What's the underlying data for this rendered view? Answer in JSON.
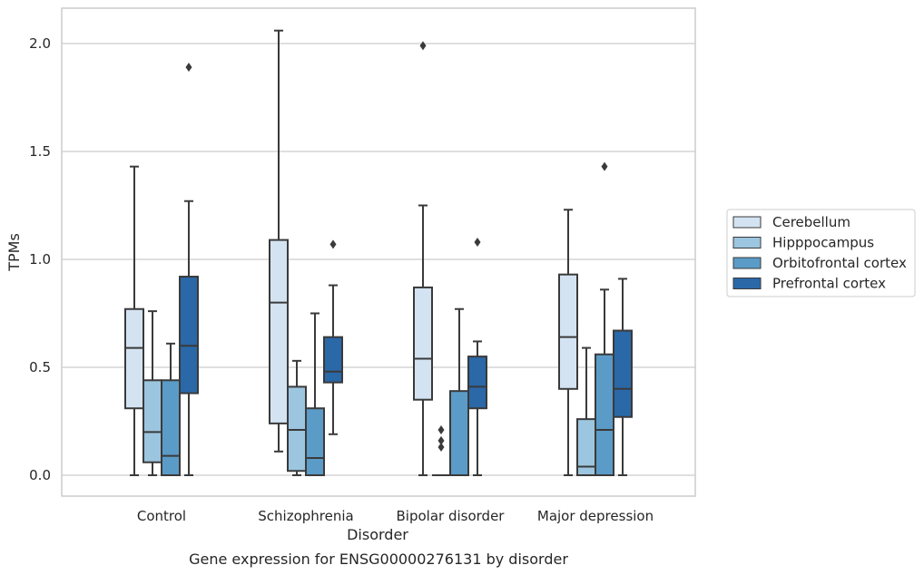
{
  "chart_data": {
    "type": "box",
    "title": "",
    "caption": "Gene expression for ENSG00000276131 by disorder",
    "xlabel": "Disorder",
    "ylabel": "TPMs",
    "ylim": [
      -0.1,
      2.17
    ],
    "yticks": [
      0.0,
      0.5,
      1.0,
      1.5,
      2.0
    ],
    "ytick_labels": [
      "0.0",
      "0.5",
      "1.0",
      "1.5",
      "2.0"
    ],
    "grid": "horizontal",
    "legend_position": "right",
    "categories": [
      "Control",
      "Schizophrenia",
      "Bipolar disorder",
      "Major depression"
    ],
    "series": [
      {
        "name": "Cerebellum",
        "color": "#d4e3f2",
        "boxes": [
          {
            "whislo": 0.0,
            "q1": 0.31,
            "med": 0.59,
            "q3": 0.77,
            "whishi": 1.43,
            "fliers": []
          },
          {
            "whislo": 0.11,
            "q1": 0.24,
            "med": 0.8,
            "q3": 1.09,
            "whishi": 2.06,
            "fliers": []
          },
          {
            "whislo": 0.0,
            "q1": 0.35,
            "med": 0.54,
            "q3": 0.87,
            "whishi": 1.25,
            "fliers": [
              1.99
            ]
          },
          {
            "whislo": 0.0,
            "q1": 0.4,
            "med": 0.64,
            "q3": 0.93,
            "whishi": 1.23,
            "fliers": []
          }
        ]
      },
      {
        "name": "Hipppocampus",
        "color": "#9cc5df",
        "boxes": [
          {
            "whislo": 0.0,
            "q1": 0.06,
            "med": 0.2,
            "q3": 0.44,
            "whishi": 0.76,
            "fliers": []
          },
          {
            "whislo": 0.0,
            "q1": 0.02,
            "med": 0.21,
            "q3": 0.41,
            "whishi": 0.53,
            "fliers": []
          },
          {
            "whislo": 0.0,
            "q1": 0.0,
            "med": 0.0,
            "q3": 0.0,
            "whishi": 0.0,
            "fliers": [
              0.13,
              0.16,
              0.21
            ]
          },
          {
            "whislo": 0.0,
            "q1": 0.0,
            "med": 0.04,
            "q3": 0.26,
            "whishi": 0.59,
            "fliers": []
          }
        ]
      },
      {
        "name": "Orbitofrontal cortex",
        "color": "#5b9bc7",
        "boxes": [
          {
            "whislo": 0.0,
            "q1": 0.0,
            "med": 0.09,
            "q3": 0.44,
            "whishi": 0.61,
            "fliers": []
          },
          {
            "whislo": 0.0,
            "q1": 0.0,
            "med": 0.08,
            "q3": 0.31,
            "whishi": 0.75,
            "fliers": []
          },
          {
            "whislo": 0.0,
            "q1": 0.0,
            "med": 0.0,
            "q3": 0.39,
            "whishi": 0.77,
            "fliers": []
          },
          {
            "whislo": 0.0,
            "q1": 0.0,
            "med": 0.21,
            "q3": 0.56,
            "whishi": 0.86,
            "fliers": [
              1.43
            ]
          }
        ]
      },
      {
        "name": "Prefrontal cortex",
        "color": "#2a68a8",
        "boxes": [
          {
            "whislo": 0.0,
            "q1": 0.38,
            "med": 0.6,
            "q3": 0.92,
            "whishi": 1.27,
            "fliers": [
              1.89
            ]
          },
          {
            "whislo": 0.19,
            "q1": 0.43,
            "med": 0.48,
            "q3": 0.64,
            "whishi": 0.88,
            "fliers": [
              1.07
            ]
          },
          {
            "whislo": 0.0,
            "q1": 0.31,
            "med": 0.41,
            "q3": 0.55,
            "whishi": 0.62,
            "fliers": [
              1.08
            ]
          },
          {
            "whislo": 0.0,
            "q1": 0.27,
            "med": 0.4,
            "q3": 0.67,
            "whishi": 0.91,
            "fliers": []
          }
        ]
      }
    ]
  }
}
